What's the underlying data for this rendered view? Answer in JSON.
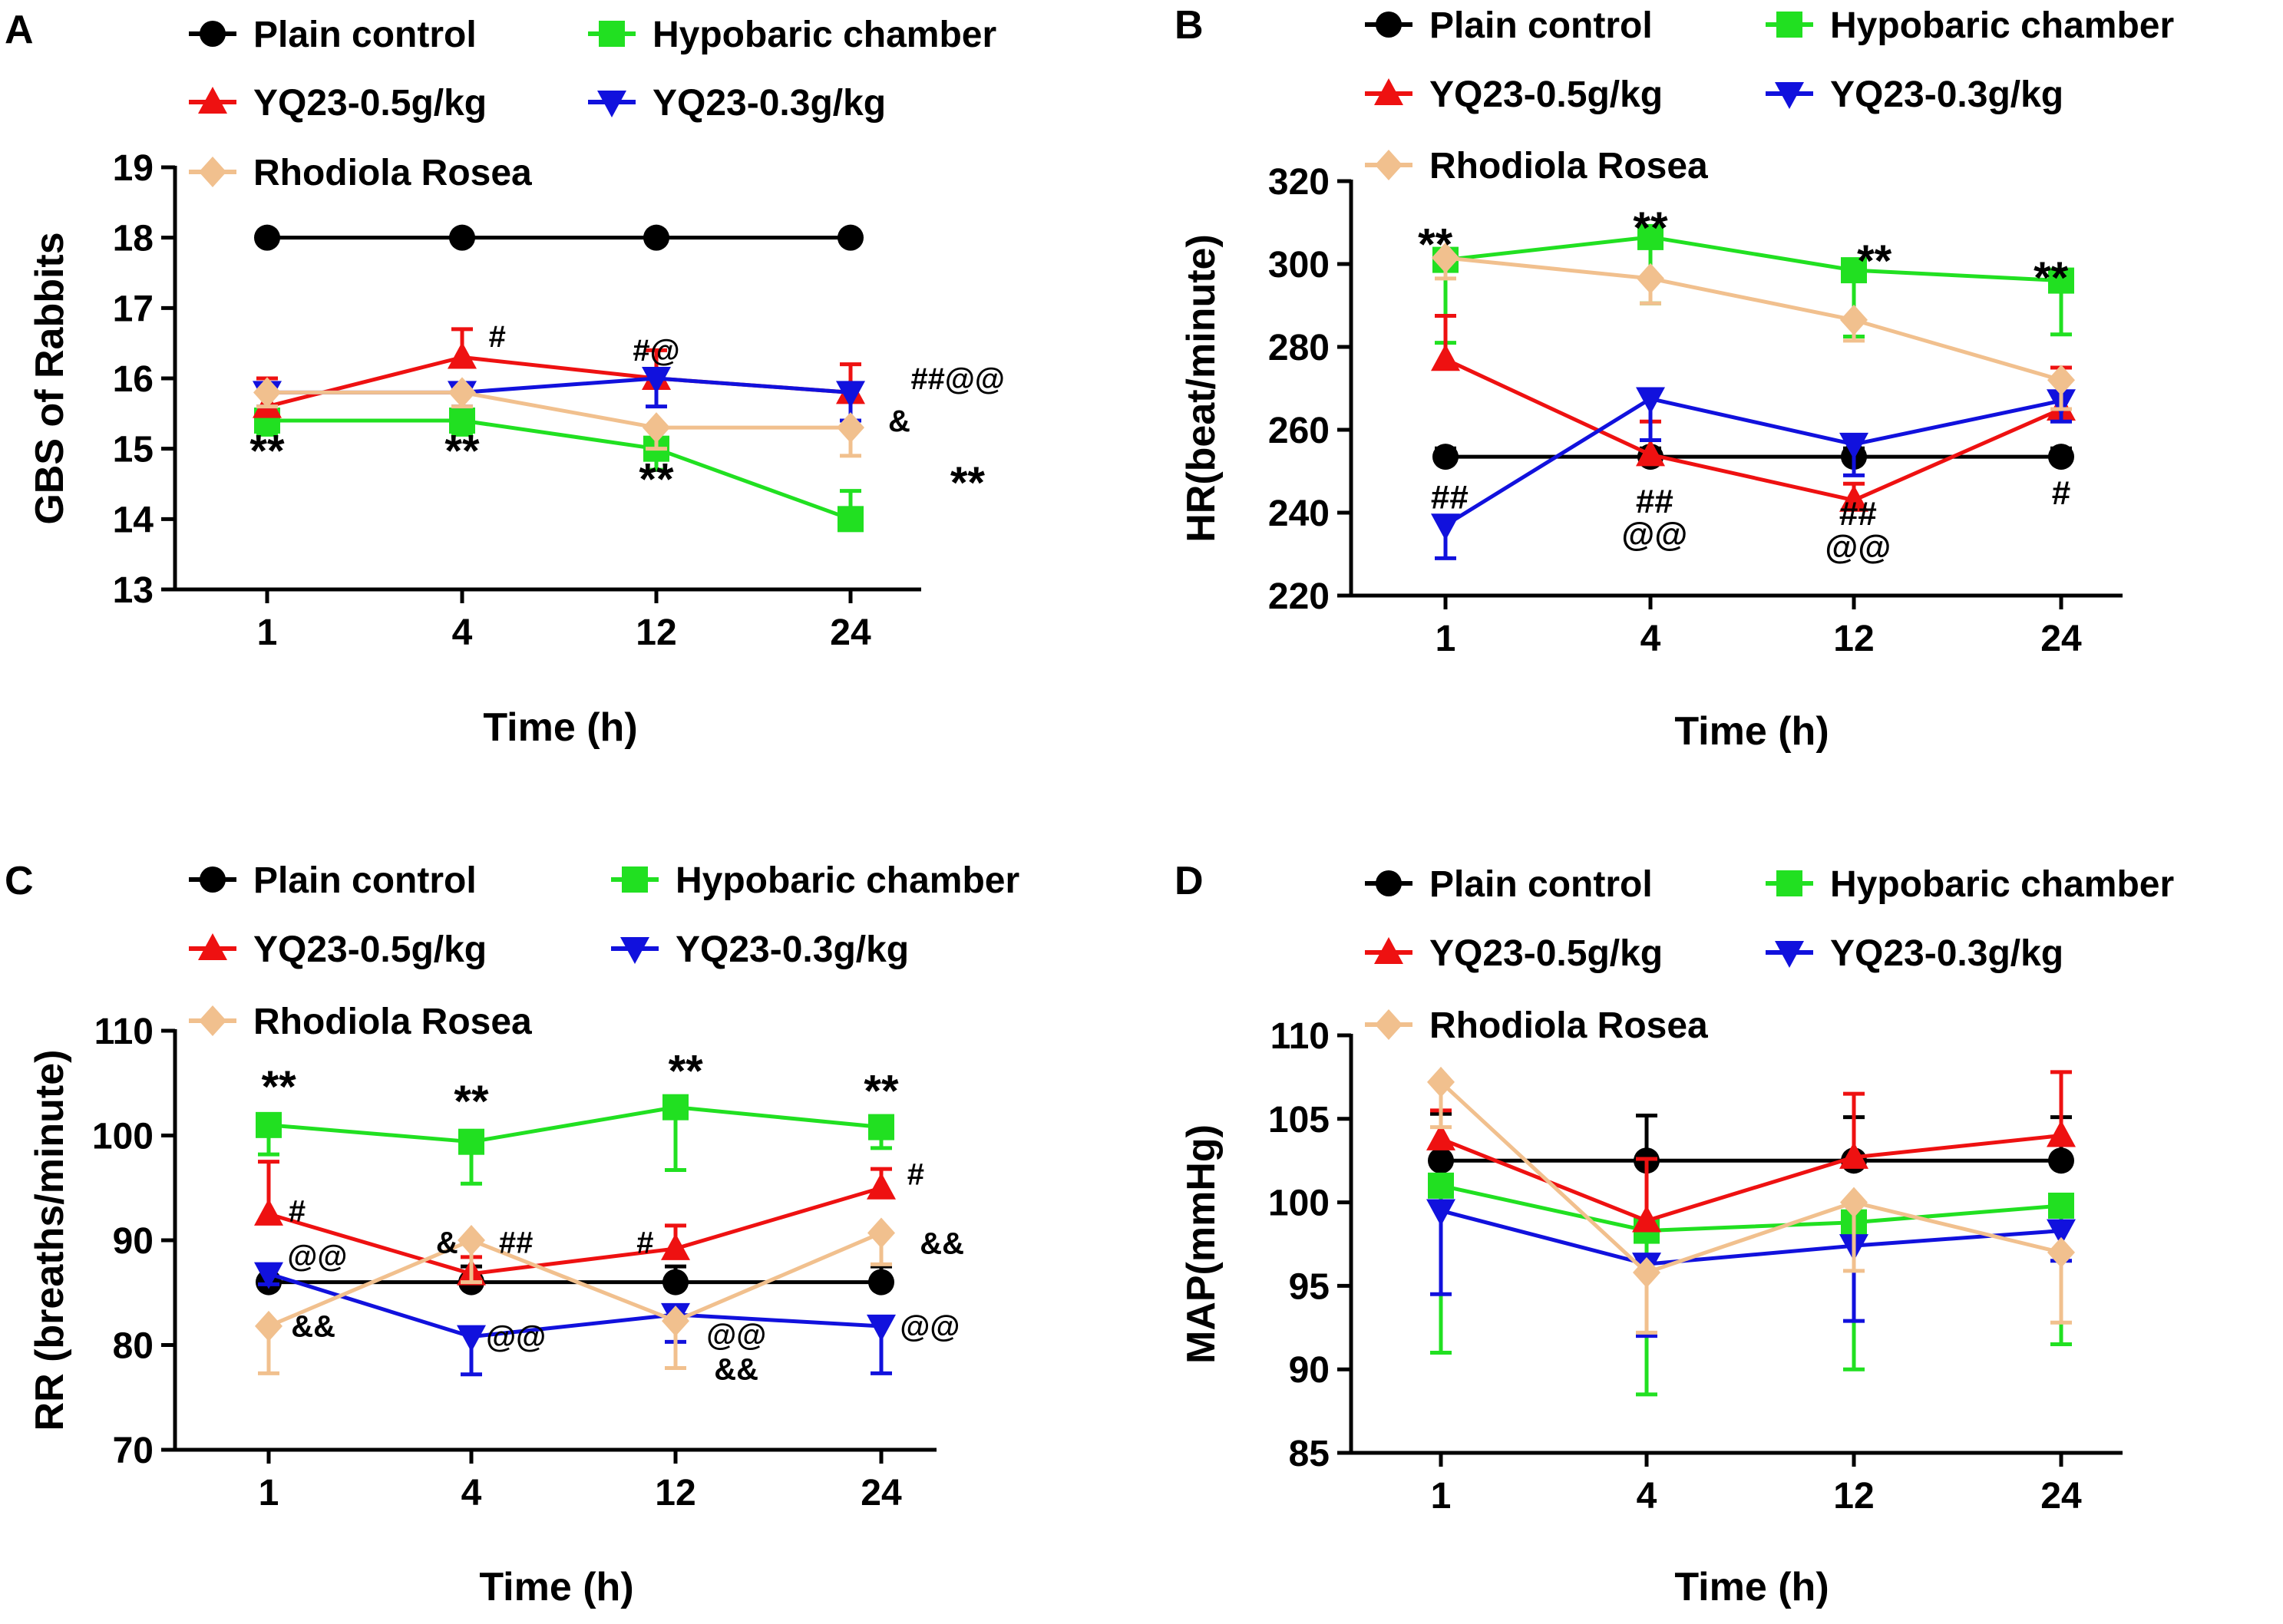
{
  "colors": {
    "plain": "#000000",
    "hypobaric": "#21e021",
    "yq05": "#ee1111",
    "yq03": "#1111dd",
    "rhodiola": "#f1c08e"
  },
  "chart_data": [
    {
      "type": "line",
      "panel": "A",
      "xlabel": "Time (h)",
      "ylabel": "GBS of Rabbits",
      "categories": [
        "1",
        "4",
        "12",
        "24"
      ],
      "ylim": [
        13,
        19
      ],
      "yticks": [
        13,
        14,
        15,
        16,
        17,
        18,
        19
      ],
      "series": [
        {
          "key": "plain",
          "name": "Plain control",
          "marker": "circle",
          "values": [
            18,
            18,
            18,
            18
          ],
          "errors": [
            0,
            0,
            0,
            0
          ],
          "errdir": [
            1,
            1,
            1,
            1
          ]
        },
        {
          "key": "hypobaric",
          "name": "Hypobaric chamber",
          "marker": "square",
          "values": [
            15.4,
            15.4,
            15.0,
            14.0
          ],
          "errors": [
            0.2,
            0.2,
            0.3,
            0.4
          ],
          "errdir": [
            -1,
            -1,
            -1,
            1
          ]
        },
        {
          "key": "yq05",
          "name": "YQ23-0.5g/kg",
          "marker": "triangle-up",
          "values": [
            15.6,
            16.3,
            16.0,
            15.8
          ],
          "errors": [
            0.4,
            0.4,
            0.4,
            0.4
          ],
          "errdir": [
            1,
            1,
            1,
            1
          ]
        },
        {
          "key": "yq03",
          "name": "YQ23-0.3g/kg",
          "marker": "triangle-down",
          "values": [
            15.8,
            15.8,
            16.0,
            15.8
          ],
          "errors": [
            0.2,
            0.2,
            0.4,
            0.4
          ],
          "errdir": [
            -1,
            -1,
            -1,
            -1
          ]
        },
        {
          "key": "rhodiola",
          "name": "Rhodiola Rosea",
          "marker": "diamond",
          "values": [
            15.8,
            15.8,
            15.3,
            15.3
          ],
          "errors": [
            0.2,
            0.2,
            0.3,
            0.4
          ],
          "errdir": [
            -1,
            -1,
            -1,
            -1
          ]
        }
      ],
      "annotations": [
        {
          "text": "**",
          "x": "1",
          "y": 14.75,
          "size": 58
        },
        {
          "text": "**",
          "x": "4",
          "y": 14.75,
          "size": 58
        },
        {
          "text": "**",
          "x": "12",
          "y": 14.35,
          "size": 58
        },
        {
          "text": "**",
          "x": "24",
          "y": 14.3,
          "size": 58,
          "dx": 0.6
        },
        {
          "text": "#",
          "x": "4",
          "y": 16.45,
          "size": 40,
          "dx": 0.18
        },
        {
          "text": "#@",
          "x": "12",
          "y": 16.25,
          "size": 40
        },
        {
          "text": "##@@",
          "x": "24",
          "y": 15.85,
          "size": 40,
          "dx": 0.55
        },
        {
          "text": "&",
          "x": "24",
          "y": 15.25,
          "size": 40,
          "dx": 0.25
        }
      ]
    },
    {
      "type": "line",
      "panel": "B",
      "xlabel": "Time (h)",
      "ylabel": "HR(beat/minute)",
      "categories": [
        "1",
        "4",
        "12",
        "24"
      ],
      "ylim": [
        220,
        320
      ],
      "yticks": [
        220,
        240,
        260,
        280,
        300,
        320
      ],
      "series": [
        {
          "key": "plain",
          "name": "Plain control",
          "marker": "circle",
          "values": [
            253.5,
            253.5,
            253.5,
            253.5
          ],
          "errors": [
            2,
            2,
            2,
            2
          ],
          "errdir": [
            1,
            1,
            1,
            1
          ]
        },
        {
          "key": "hypobaric",
          "name": "Hypobaric chamber",
          "marker": "square",
          "values": [
            301,
            306.5,
            298.5,
            296
          ],
          "errors": [
            20,
            16,
            16,
            13
          ],
          "errdir": [
            -1,
            -1,
            -1,
            -1
          ]
        },
        {
          "key": "yq05",
          "name": "YQ23-0.5g/kg",
          "marker": "triangle-up",
          "values": [
            277,
            254,
            243,
            265
          ],
          "errors": [
            10.5,
            8,
            4,
            10
          ],
          "errdir": [
            1,
            1,
            1,
            1
          ]
        },
        {
          "key": "yq03",
          "name": "YQ23-0.3g/kg",
          "marker": "triangle-down",
          "values": [
            237,
            267.5,
            256.5,
            267
          ],
          "errors": [
            8,
            10,
            7.5,
            5
          ],
          "errdir": [
            -1,
            -1,
            -1,
            -1
          ]
        },
        {
          "key": "rhodiola",
          "name": "Rhodiola Rosea",
          "marker": "diamond",
          "values": [
            301.5,
            296.5,
            286.5,
            272
          ],
          "errors": [
            5,
            6,
            5,
            7
          ],
          "errdir": [
            -1,
            -1,
            -1,
            -1
          ]
        }
      ],
      "annotations": [
        {
          "text": "**",
          "x": "1",
          "y": 301,
          "size": 58,
          "dx": -0.05
        },
        {
          "text": "**",
          "x": "4",
          "y": 305,
          "size": 58
        },
        {
          "text": "**",
          "x": "12",
          "y": 297,
          "size": 58,
          "dx": 0.1
        },
        {
          "text": "**",
          "x": "24",
          "y": 293,
          "size": 58,
          "dx": -0.05
        },
        {
          "text": "##",
          "x": "1",
          "y": 241,
          "size": 44,
          "dx": 0.02
        },
        {
          "text": "##",
          "x": "4",
          "y": 240,
          "size": 44,
          "dx": 0.02
        },
        {
          "text": "@@",
          "x": "4",
          "y": 232,
          "size": 44,
          "dx": 0.02
        },
        {
          "text": "##",
          "x": "12",
          "y": 237,
          "size": 44,
          "dx": 0.02
        },
        {
          "text": "@@",
          "x": "12",
          "y": 229,
          "size": 44,
          "dx": 0.02
        },
        {
          "text": "#",
          "x": "24",
          "y": 242,
          "size": 44
        }
      ]
    },
    {
      "type": "line",
      "panel": "C",
      "xlabel": "Time (h)",
      "ylabel": "RR (breaths/minute)",
      "categories": [
        "1",
        "4",
        "12",
        "24"
      ],
      "ylim": [
        70,
        110
      ],
      "yticks": [
        70,
        80,
        90,
        100,
        110
      ],
      "series": [
        {
          "key": "plain",
          "name": "Plain control",
          "marker": "circle",
          "values": [
            86,
            86,
            86,
            86
          ],
          "errors": [
            1.5,
            1.5,
            1.5,
            1.5
          ],
          "errdir": [
            1,
            1,
            1,
            1
          ]
        },
        {
          "key": "hypobaric",
          "name": "Hypobaric chamber",
          "marker": "square",
          "values": [
            101,
            99.4,
            102.7,
            100.8
          ],
          "errors": [
            2.8,
            4,
            6,
            2
          ],
          "errdir": [
            -1,
            -1,
            -1,
            -1
          ]
        },
        {
          "key": "yq05",
          "name": "YQ23-0.5g/kg",
          "marker": "triangle-up",
          "values": [
            92.5,
            86.8,
            89.2,
            95
          ],
          "errors": [
            5,
            1.6,
            2.2,
            1.8
          ],
          "errdir": [
            1,
            1,
            1,
            1
          ]
        },
        {
          "key": "yq03",
          "name": "YQ23-0.3g/kg",
          "marker": "triangle-down",
          "values": [
            86.8,
            80.8,
            82.9,
            81.8
          ],
          "errors": [
            1,
            3.6,
            2.6,
            4.5
          ],
          "errdir": [
            -1,
            -1,
            -1,
            -1
          ]
        },
        {
          "key": "rhodiola",
          "name": "Rhodiola Rosea",
          "marker": "diamond",
          "values": [
            81.8,
            90,
            82.3,
            90.7
          ],
          "errors": [
            4.5,
            4,
            4.5,
            3
          ],
          "errdir": [
            -1,
            -1,
            -1,
            -1
          ]
        }
      ],
      "annotations": [
        {
          "text": "**",
          "x": "1",
          "y": 103.2,
          "size": 58,
          "dx": 0.05
        },
        {
          "text": "**",
          "x": "4",
          "y": 101.8,
          "size": 58
        },
        {
          "text": "**",
          "x": "12",
          "y": 104.7,
          "size": 58,
          "dx": 0.05
        },
        {
          "text": "**",
          "x": "24",
          "y": 102.8,
          "size": 58
        },
        {
          "text": "#",
          "x": "1",
          "y": 91.8,
          "size": 40,
          "dx": 0.14
        },
        {
          "text": "&",
          "x": "4",
          "y": 88.8,
          "size": 40,
          "dx": -0.12
        },
        {
          "text": "##",
          "x": "4",
          "y": 88.8,
          "size": 40,
          "dx": 0.22
        },
        {
          "text": "#",
          "x": "12",
          "y": 88.8,
          "size": 40,
          "dx": -0.15
        },
        {
          "text": "#",
          "x": "24",
          "y": 95.3,
          "size": 40,
          "dx": 0.17
        },
        {
          "text": "@@",
          "x": "1",
          "y": 87.5,
          "size": 40,
          "dx": 0.24
        },
        {
          "text": "&&",
          "x": "24",
          "y": 88.7,
          "size": 40,
          "dx": 0.3
        },
        {
          "text": "&&",
          "x": "1",
          "y": 80.8,
          "size": 40,
          "dx": 0.22
        },
        {
          "text": "@@",
          "x": "4",
          "y": 79.8,
          "size": 40,
          "dx": 0.22
        },
        {
          "text": "@@",
          "x": "12",
          "y": 80.0,
          "size": 40,
          "dx": 0.3
        },
        {
          "text": "&&",
          "x": "12",
          "y": 76.7,
          "size": 40,
          "dx": 0.3
        },
        {
          "text": "@@",
          "x": "24",
          "y": 80.8,
          "size": 40,
          "dx": 0.24
        }
      ]
    },
    {
      "type": "line",
      "panel": "D",
      "xlabel": "Time (h)",
      "ylabel": "MAP(mmHg)",
      "categories": [
        "1",
        "4",
        "12",
        "24"
      ],
      "ylim": [
        85,
        110
      ],
      "yticks": [
        85,
        90,
        95,
        100,
        105,
        110
      ],
      "series": [
        {
          "key": "plain",
          "name": "Plain control",
          "marker": "circle",
          "values": [
            102.5,
            102.5,
            102.5,
            102.5
          ],
          "errors": [
            2.8,
            2.7,
            2.6,
            2.6
          ],
          "errdir": [
            1,
            1,
            1,
            1
          ]
        },
        {
          "key": "hypobaric",
          "name": "Hypobaric chamber",
          "marker": "square",
          "values": [
            101,
            98.3,
            98.8,
            99.8
          ],
          "errors": [
            10,
            9.8,
            8.8,
            8.3
          ],
          "errdir": [
            -1,
            -1,
            -1,
            -1
          ]
        },
        {
          "key": "yq05",
          "name": "YQ23-0.5g/kg",
          "marker": "triangle-up",
          "values": [
            103.8,
            98.9,
            102.7,
            104
          ],
          "errors": [
            1.7,
            3.7,
            3.8,
            3.8
          ],
          "errdir": [
            1,
            1,
            1,
            1
          ]
        },
        {
          "key": "yq03",
          "name": "YQ23-0.3g/kg",
          "marker": "triangle-down",
          "values": [
            99.5,
            96.3,
            97.4,
            98.3
          ],
          "errors": [
            5,
            4.3,
            4.5,
            1.8
          ],
          "errdir": [
            -1,
            -1,
            -1,
            -1
          ]
        },
        {
          "key": "rhodiola",
          "name": "Rhodiola Rosea",
          "marker": "diamond",
          "values": [
            107.2,
            95.8,
            100,
            97
          ],
          "errors": [
            2.7,
            3.6,
            4.1,
            4.2
          ],
          "errdir": [
            -1,
            -1,
            -1,
            -1
          ]
        }
      ],
      "annotations": []
    }
  ]
}
